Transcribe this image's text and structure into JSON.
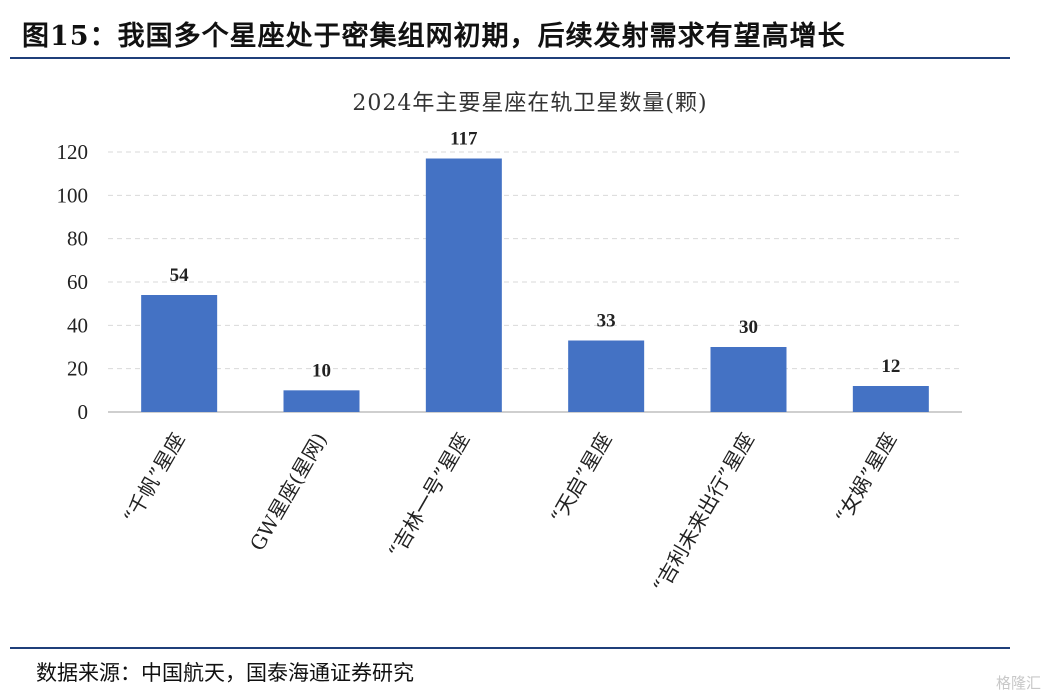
{
  "figure": {
    "title": "图15：我国多个星座处于密集组网初期，后续发射需求有望高增长",
    "source": "数据来源：中国航天，国泰海通证券研究",
    "watermark": "格隆汇"
  },
  "chart_data": {
    "type": "bar",
    "title": "2024年主要星座在轨卫星数量(颗)",
    "categories": [
      "“千帆”星座",
      "GW星座(星网)",
      "“吉林一号”星座",
      "“天启”星座",
      "“吉利未来出行”星座",
      "“女娲”星座"
    ],
    "values": [
      54,
      10,
      117,
      33,
      30,
      12
    ],
    "ylim": [
      0,
      120
    ],
    "yticks": [
      0,
      20,
      40,
      60,
      80,
      100,
      120
    ],
    "grid": true,
    "colors": {
      "bar": "#4472c4",
      "grid": "#d9d9d9",
      "axis": "#bfbfbf"
    }
  }
}
